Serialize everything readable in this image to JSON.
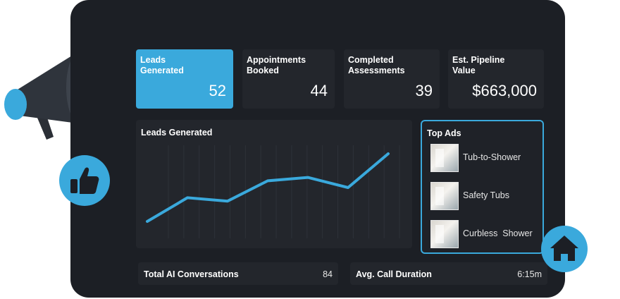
{
  "kpis": [
    {
      "label": "Leads\nGenerated",
      "value": "52"
    },
    {
      "label": "Appointments\nBooked",
      "value": "44"
    },
    {
      "label": "Completed\nAssessments",
      "value": "39"
    },
    {
      "label": "Est. Pipeline\nValue",
      "value": "$663,000"
    }
  ],
  "leads_chart": {
    "title": "Leads Generated",
    "chart_data": {
      "type": "line",
      "x": [
        1,
        2,
        3,
        4,
        5,
        6,
        7
      ],
      "values": [
        10,
        24,
        22,
        34,
        36,
        30,
        50
      ],
      "ylim": [
        0,
        55
      ],
      "grid": "vertical"
    }
  },
  "top_ads": {
    "title": "Top Ads",
    "items": [
      {
        "label": "Tub-to-Shower"
      },
      {
        "label": "Safety Tubs"
      },
      {
        "label": "Curbless  Shower"
      }
    ]
  },
  "stats": {
    "ai_conversations": {
      "label": "Total AI Conversations",
      "value": "84"
    },
    "call_duration": {
      "label": "Avg. Call Duration",
      "value": "6:15m"
    }
  },
  "colors": {
    "accent": "#3aa9dc",
    "panel": "#1c1f25",
    "card": "#23262c"
  },
  "icons": [
    "megaphone-icon",
    "thumbs-up-icon",
    "home-icon"
  ]
}
